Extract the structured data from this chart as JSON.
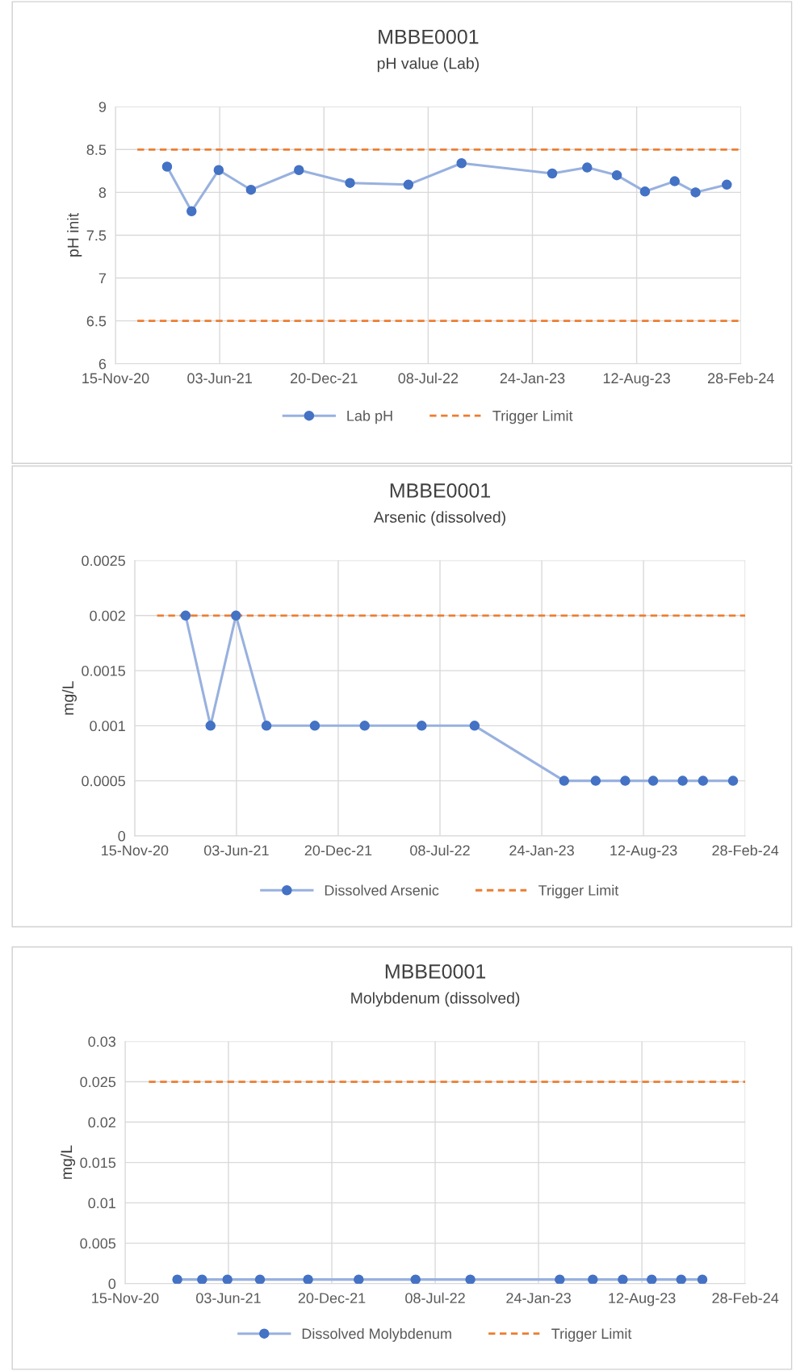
{
  "chart_data": [
    {
      "type": "line",
      "title": "MBBE0001",
      "subtitle": "pH value (Lab)",
      "ylabel": "pH init",
      "ylim": [
        6,
        9
      ],
      "yticks": [
        6,
        6.5,
        7,
        7.5,
        8,
        8.5,
        9
      ],
      "xlim": [
        "2020-11-15",
        "2024-02-28"
      ],
      "xticks": [
        {
          "value": "2020-11-15",
          "label": "15-Nov-20"
        },
        {
          "value": "2021-06-03",
          "label": "03-Jun-21"
        },
        {
          "value": "2021-12-20",
          "label": "20-Dec-21"
        },
        {
          "value": "2022-07-08",
          "label": "08-Jul-22"
        },
        {
          "value": "2023-01-24",
          "label": "24-Jan-23"
        },
        {
          "value": "2023-08-12",
          "label": "12-Aug-23"
        },
        {
          "value": "2024-02-28",
          "label": "28-Feb-24"
        }
      ],
      "grid": true,
      "legend": "bottom",
      "series": [
        {
          "name": "Lab pH",
          "color": "#4472c4",
          "marker": "circle",
          "line_style": "solid",
          "x": [
            "2021-02-22",
            "2021-04-10",
            "2021-06-01",
            "2021-08-02",
            "2021-11-02",
            "2022-02-08",
            "2022-05-31",
            "2022-09-10",
            "2023-03-03",
            "2023-05-09",
            "2023-07-05",
            "2023-08-28",
            "2023-10-24",
            "2023-12-03",
            "2024-02-01"
          ],
          "values": [
            8.3,
            7.78,
            8.26,
            8.03,
            8.26,
            8.11,
            8.09,
            8.34,
            8.22,
            8.29,
            8.2,
            8.01,
            8.13,
            8.0,
            8.09
          ]
        },
        {
          "name": "Trigger Limit",
          "color": "#ed7d31",
          "marker": "none",
          "line_style": "dashed",
          "x": [
            "2020-12-27",
            "2024-02-28"
          ],
          "values": [
            8.5,
            8.5
          ]
        },
        {
          "color": "#ed7d31",
          "marker": "none",
          "line_style": "dashed",
          "x": [
            "2020-12-27",
            "2024-02-28"
          ],
          "values": [
            6.5,
            6.5
          ]
        }
      ]
    },
    {
      "type": "line",
      "title": "MBBE0001",
      "subtitle": "Arsenic (dissolved)",
      "ylabel": "mg/L",
      "ylim": [
        0,
        0.0025
      ],
      "yticks": [
        0,
        0.0005,
        0.001,
        0.0015,
        0.002,
        0.0025
      ],
      "xlim": [
        "2020-11-15",
        "2024-02-28"
      ],
      "xticks": [
        {
          "value": "2020-11-15",
          "label": "15-Nov-20"
        },
        {
          "value": "2021-06-03",
          "label": "03-Jun-21"
        },
        {
          "value": "2021-12-20",
          "label": "20-Dec-21"
        },
        {
          "value": "2022-07-08",
          "label": "08-Jul-22"
        },
        {
          "value": "2023-01-24",
          "label": "24-Jan-23"
        },
        {
          "value": "2023-08-12",
          "label": "12-Aug-23"
        },
        {
          "value": "2024-02-28",
          "label": "28-Feb-24"
        }
      ],
      "grid": true,
      "legend": "bottom",
      "series": [
        {
          "name": "Dissolved Arsenic",
          "color": "#4472c4",
          "marker": "circle",
          "line_style": "solid",
          "x": [
            "2021-02-23",
            "2021-04-13",
            "2021-06-02",
            "2021-08-01",
            "2021-11-04",
            "2022-02-10",
            "2022-06-02",
            "2022-09-14",
            "2023-03-09",
            "2023-05-10",
            "2023-07-07",
            "2023-08-31",
            "2023-10-28",
            "2023-12-07",
            "2024-02-04"
          ],
          "values": [
            0.002,
            0.001,
            0.002,
            0.001,
            0.001,
            0.001,
            0.001,
            0.001,
            0.0005,
            0.0005,
            0.0005,
            0.0005,
            0.0005,
            0.0005,
            0.0005
          ]
        },
        {
          "name": "Trigger Limit",
          "color": "#ed7d31",
          "marker": "none",
          "line_style": "dashed",
          "x": [
            "2020-12-29",
            "2024-02-28"
          ],
          "values": [
            0.002,
            0.002
          ]
        }
      ]
    },
    {
      "type": "line",
      "title": "MBBE0001",
      "subtitle": "Molybdenum (dissolved)",
      "ylabel": "mg/L",
      "ylim": [
        0,
        0.03
      ],
      "yticks": [
        0,
        0.005,
        0.01,
        0.015,
        0.02,
        0.025,
        0.03
      ],
      "xlim": [
        "2020-11-15",
        "2024-02-28"
      ],
      "xticks": [
        {
          "value": "2020-11-15",
          "label": "15-Nov-20"
        },
        {
          "value": "2021-06-03",
          "label": "03-Jun-21"
        },
        {
          "value": "2021-12-20",
          "label": "20-Dec-21"
        },
        {
          "value": "2022-07-08",
          "label": "08-Jul-22"
        },
        {
          "value": "2023-01-24",
          "label": "24-Jan-23"
        },
        {
          "value": "2023-08-12",
          "label": "12-Aug-23"
        },
        {
          "value": "2024-02-28",
          "label": "28-Feb-24"
        }
      ],
      "grid": true,
      "legend": "bottom",
      "series": [
        {
          "name": "Dissolved Molybdenum",
          "color": "#4472c4",
          "marker": "circle",
          "line_style": "solid",
          "x": [
            "2021-02-24",
            "2021-04-13",
            "2021-06-01",
            "2021-08-03",
            "2021-11-04",
            "2022-02-10",
            "2022-05-31",
            "2022-09-14",
            "2023-03-06",
            "2023-05-09",
            "2023-07-06",
            "2023-08-31",
            "2023-10-27",
            "2023-12-07"
          ],
          "values": [
            0.0005,
            0.0005,
            0.0005,
            0.0005,
            0.0005,
            0.0005,
            0.0005,
            0.0005,
            0.0005,
            0.0005,
            0.0005,
            0.0005,
            0.0005,
            0.0005
          ]
        },
        {
          "name": "Trigger Limit",
          "color": "#ed7d31",
          "marker": "none",
          "line_style": "dashed",
          "x": [
            "2020-12-31",
            "2024-02-28"
          ],
          "values": [
            0.025,
            0.025
          ]
        }
      ]
    }
  ]
}
